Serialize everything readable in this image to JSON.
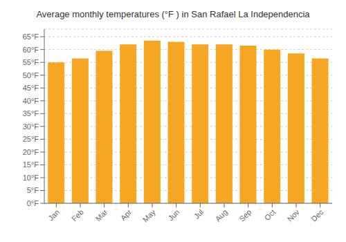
{
  "chart_data": {
    "type": "bar",
    "title": "Average monthly temperatures (°F ) in San Rafael La Independencia",
    "categories": [
      "Jan",
      "Feb",
      "Mar",
      "Apr",
      "May",
      "Jun",
      "Jul",
      "Aug",
      "Sep",
      "Oct",
      "Nov",
      "Dec"
    ],
    "values": [
      55.0,
      56.5,
      59.5,
      62.0,
      63.5,
      63.0,
      62.0,
      62.0,
      61.5,
      60.0,
      58.5,
      56.5
    ],
    "color": "#F5A623",
    "ylim": [
      0,
      68
    ],
    "yticks": [
      {
        "value": 0,
        "label": "0°F"
      },
      {
        "value": 5,
        "label": "5°F"
      },
      {
        "value": 10,
        "label": "10°F"
      },
      {
        "value": 15,
        "label": "15°F"
      },
      {
        "value": 20,
        "label": "20°F"
      },
      {
        "value": 25,
        "label": "25°F"
      },
      {
        "value": 30,
        "label": "30°F"
      },
      {
        "value": 35,
        "label": "35°F"
      },
      {
        "value": 40,
        "label": "40°F"
      },
      {
        "value": 45,
        "label": "45°F"
      },
      {
        "value": 50,
        "label": "50°F"
      },
      {
        "value": 55,
        "label": "55°F"
      },
      {
        "value": 60,
        "label": "60°F"
      },
      {
        "value": 65,
        "label": "65°F"
      }
    ],
    "grid": true
  }
}
